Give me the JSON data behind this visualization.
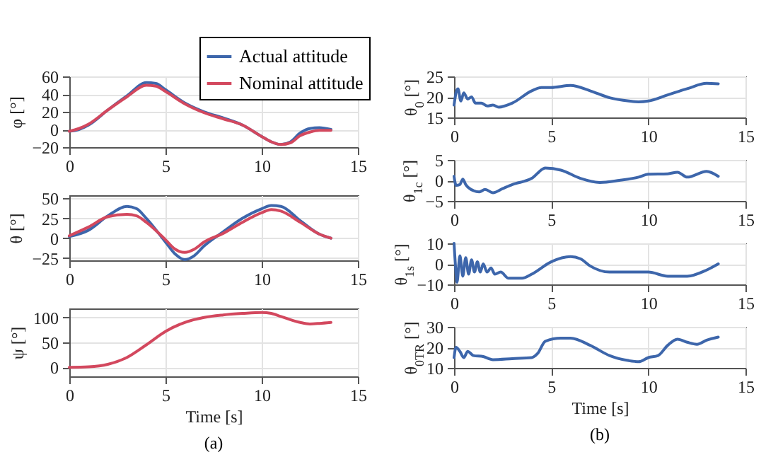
{
  "chart_data": [
    {
      "type": "line",
      "ylabel": "φ [°]",
      "xlim": [
        0,
        15
      ],
      "xticks": [
        0,
        5,
        10,
        15
      ],
      "ylim": [
        -20,
        60
      ],
      "yticks": [
        -20,
        0,
        20,
        40,
        60
      ],
      "grid": true,
      "legend": "top right",
      "series": [
        {
          "name": "Actual attitude",
          "color": "#3d66ab",
          "x": [
            0,
            0.5,
            1,
            2,
            3,
            4,
            4.5,
            5,
            6,
            7,
            8,
            9,
            10,
            10.5,
            11,
            11.5,
            12,
            12.5,
            13,
            13.6
          ],
          "values": [
            -2,
            0,
            5,
            22,
            38,
            53,
            52,
            45,
            30,
            20,
            13,
            5,
            -8,
            -14,
            -17,
            -14,
            -4,
            1,
            2,
            0
          ]
        },
        {
          "name": "Nominal attitude",
          "color": "#d3485e",
          "x": [
            0,
            0.5,
            1,
            2,
            3,
            4,
            4.5,
            5,
            6,
            7,
            8,
            9,
            10,
            10.5,
            11,
            11.5,
            12,
            12.5,
            13,
            13.6
          ],
          "values": [
            -2,
            1,
            6,
            22,
            37,
            50,
            49,
            43,
            29,
            19,
            12,
            5,
            -8,
            -14,
            -17,
            -15,
            -7,
            -3,
            -1,
            -1
          ]
        }
      ]
    },
    {
      "type": "line",
      "ylabel": "θ [°]",
      "xlim": [
        0,
        15
      ],
      "xticks": [
        0,
        5,
        10,
        15
      ],
      "ylim": [
        -28,
        54
      ],
      "yticks": [
        -25,
        0,
        25,
        50
      ],
      "grid": true,
      "series": [
        {
          "color": "#3d66ab",
          "x": [
            0,
            1,
            2,
            3,
            3.5,
            4,
            5,
            5.5,
            6,
            6.5,
            7,
            8,
            9,
            10,
            10.5,
            11,
            12,
            13,
            13.6
          ],
          "values": [
            2,
            10,
            28,
            40,
            37,
            25,
            -5,
            -20,
            -27,
            -22,
            -10,
            8,
            25,
            37,
            41,
            40,
            22,
            5,
            0
          ]
        },
        {
          "color": "#d3485e",
          "x": [
            0,
            1,
            2,
            3,
            3.5,
            4,
            5,
            5.5,
            6,
            6.5,
            7,
            8,
            9,
            10,
            10.5,
            11,
            12,
            13,
            13.6
          ],
          "values": [
            3,
            14,
            27,
            30,
            28,
            20,
            -2,
            -14,
            -18,
            -14,
            -5,
            6,
            20,
            32,
            36,
            34,
            20,
            5,
            0
          ]
        }
      ]
    },
    {
      "type": "line",
      "ylabel": "ψ [°]",
      "xlabel": "Time [s]",
      "annotations": [
        "(a)"
      ],
      "xlim": [
        0,
        15
      ],
      "xticks": [
        0,
        5,
        10,
        15
      ],
      "ylim": [
        -18,
        118
      ],
      "yticks": [
        0,
        50,
        100
      ],
      "grid": true,
      "series": [
        {
          "color": "#d3485e",
          "x": [
            0,
            1,
            2,
            3,
            4,
            5,
            6,
            7,
            8,
            9,
            10,
            10.5,
            11,
            12,
            12.5,
            13,
            13.6
          ],
          "values": [
            0,
            1,
            6,
            20,
            45,
            72,
            90,
            100,
            105,
            108,
            110,
            108,
            102,
            90,
            87,
            88,
            90
          ]
        }
      ]
    },
    {
      "type": "line",
      "ylabel": "θ$_{0}$ [°]",
      "xlim": [
        0,
        15
      ],
      "xticks": [
        0,
        5,
        10,
        15
      ],
      "ylim": [
        15,
        25
      ],
      "yticks": [
        15,
        20,
        25
      ],
      "grid": true,
      "series": [
        {
          "color": "#3d66ab",
          "x": [
            0,
            0.1,
            0.2,
            0.35,
            0.5,
            0.7,
            0.9,
            1.1,
            1.4,
            1.7,
            2,
            2.3,
            3,
            4,
            4.5,
            5,
            6,
            7,
            8,
            9,
            9.5,
            10,
            11,
            12,
            13,
            13.6
          ],
          "values": [
            18,
            21,
            22,
            19,
            21,
            19.5,
            20,
            18.5,
            18.5,
            17.8,
            18,
            17.5,
            18.5,
            21.5,
            22.3,
            22.3,
            22.8,
            21.5,
            19.8,
            19,
            18.8,
            19,
            20.5,
            22,
            23.3,
            23.2
          ]
        }
      ]
    },
    {
      "type": "line",
      "ylabel": "θ$_{1c}$ [°]",
      "xlim": [
        0,
        15
      ],
      "xticks": [
        0,
        5,
        10,
        15
      ],
      "ylim": [
        -5,
        5
      ],
      "yticks": [
        -5,
        0,
        5
      ],
      "grid": true,
      "series": [
        {
          "color": "#3d66ab",
          "x": [
            0,
            0.1,
            0.3,
            0.45,
            0.6,
            1,
            1.3,
            1.6,
            2,
            2.5,
            3,
            4,
            4.7,
            5.5,
            6.5,
            7.5,
            8.5,
            9.5,
            10,
            11,
            11.5,
            12,
            13,
            13.6
          ],
          "values": [
            1,
            -1.2,
            -1,
            0.3,
            -1,
            -2.5,
            -2.8,
            -2.2,
            -3,
            -2,
            -1,
            0.5,
            3,
            2.5,
            0.5,
            -0.5,
            0,
            0.8,
            1.5,
            1.6,
            2,
            0.8,
            2.2,
            1
          ]
        }
      ]
    },
    {
      "type": "line",
      "ylabel": "θ$_{1s}$ [°]",
      "xlim": [
        0,
        15
      ],
      "xticks": [
        0,
        5,
        10,
        15
      ],
      "ylim": [
        -10,
        10
      ],
      "yticks": [
        -10,
        0,
        10
      ],
      "grid": true,
      "series": [
        {
          "color": "#3d66ab",
          "x": [
            0,
            0.08,
            0.15,
            0.3,
            0.45,
            0.6,
            0.75,
            0.9,
            1.05,
            1.2,
            1.35,
            1.5,
            1.7,
            1.9,
            2.1,
            2.4,
            2.8,
            3.5,
            4,
            5,
            6,
            6.5,
            7,
            8,
            9,
            10,
            11,
            12,
            13,
            13.6
          ],
          "values": [
            10,
            -2,
            -9,
            4,
            -6,
            3,
            -5,
            2,
            -4,
            1,
            -4,
            0,
            -4,
            -2,
            -5,
            -4,
            -7,
            -7,
            -5,
            1,
            3.5,
            2.5,
            -1,
            -4,
            -4,
            -4,
            -6,
            -6,
            -3,
            0
          ]
        }
      ]
    },
    {
      "type": "line",
      "ylabel": "θ$_{0TR}$ [°]",
      "xlabel": "Time [s]",
      "annotations": [
        "(b)"
      ],
      "xlim": [
        0,
        15
      ],
      "xticks": [
        0,
        5,
        10,
        15
      ],
      "ylim": [
        10,
        30
      ],
      "yticks": [
        10,
        20,
        30
      ],
      "grid": true,
      "series": [
        {
          "color": "#3d66ab",
          "x": [
            0,
            0.1,
            0.3,
            0.5,
            0.7,
            1,
            1.5,
            2,
            3,
            4,
            4.3,
            4.7,
            5.5,
            6,
            7,
            8,
            9,
            9.5,
            10,
            10.5,
            11,
            11.5,
            12,
            12.5,
            13,
            13.6
          ],
          "values": [
            15,
            20,
            18,
            15,
            18,
            16,
            15.5,
            14,
            14.5,
            15,
            17,
            23,
            24.5,
            24.5,
            21,
            16,
            13.5,
            13,
            15,
            16,
            21,
            24,
            22.5,
            21.5,
            23.5,
            25
          ]
        }
      ]
    }
  ]
}
